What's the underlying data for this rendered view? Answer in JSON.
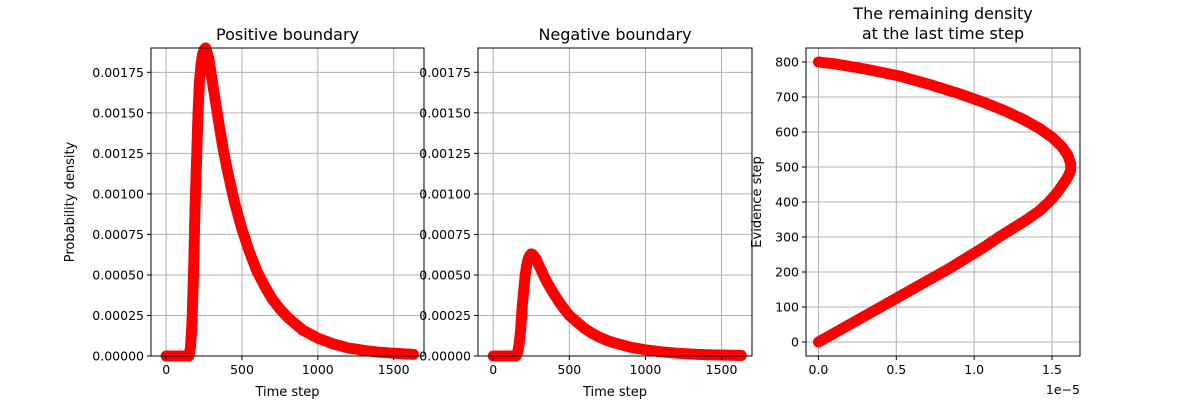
{
  "chart_data": [
    {
      "type": "scatter",
      "title": "Positive boundary",
      "xlabel": "Time step",
      "ylabel": "Probability density",
      "xlim": [
        -100,
        1700
      ],
      "ylim": [
        0,
        0.0019
      ],
      "xticks": [
        0,
        500,
        1000,
        1500
      ],
      "xtick_labels": [
        "0",
        "500",
        "1000",
        "1500"
      ],
      "yticks": [
        0,
        0.00025,
        0.0005,
        0.00075,
        0.001,
        0.00125,
        0.0015,
        0.00175
      ],
      "ytick_labels": [
        "0.00000",
        "0.00025",
        "0.00050",
        "0.00075",
        "0.00100",
        "0.00125",
        "0.00150",
        "0.00175"
      ],
      "grid": true,
      "marker_color": "#ff0000",
      "series": [
        {
          "x": [
            0,
            100,
            150,
            160,
            170,
            180,
            190,
            200,
            210,
            220,
            230,
            240,
            250,
            260,
            280,
            300,
            325,
            350,
            375,
            400,
            450,
            500,
            550,
            600,
            650,
            700,
            750,
            800,
            900,
            1000,
            1100,
            1200,
            1300,
            1400,
            1500,
            1600,
            1630
          ],
          "y": [
            0,
            0,
            0,
            5e-05,
            0.0002,
            0.0005,
            0.0009,
            0.0012,
            0.0015,
            0.0017,
            0.0018,
            0.00186,
            0.00189,
            0.0019,
            0.00184,
            0.00172,
            0.00157,
            0.00142,
            0.00128,
            0.00116,
            0.00095,
            0.00078,
            0.00064,
            0.00052,
            0.00043,
            0.00035,
            0.00029,
            0.00024,
            0.00016,
            0.00011,
            7.5e-05,
            5e-05,
            3.5e-05,
            2.4e-05,
            1.7e-05,
            1.2e-05,
            1e-05
          ]
        }
      ]
    },
    {
      "type": "scatter",
      "title": "Negative boundary",
      "xlabel": "Time step",
      "ylabel": "",
      "xlim": [
        -100,
        1700
      ],
      "ylim": [
        0,
        0.0019
      ],
      "xticks": [
        0,
        500,
        1000,
        1500
      ],
      "xtick_labels": [
        "0",
        "500",
        "1000",
        "1500"
      ],
      "yticks": [
        0,
        0.00025,
        0.0005,
        0.00075,
        0.001,
        0.00125,
        0.0015,
        0.00175
      ],
      "ytick_labels": [
        "0.00000",
        "0.00025",
        "0.00050",
        "0.00075",
        "0.00100",
        "0.00125",
        "0.00150",
        "0.00175"
      ],
      "grid": true,
      "marker_color": "#ff0000",
      "series": [
        {
          "x": [
            0,
            100,
            150,
            160,
            170,
            180,
            190,
            200,
            210,
            220,
            230,
            240,
            250,
            260,
            280,
            300,
            325,
            350,
            375,
            400,
            450,
            500,
            550,
            600,
            650,
            700,
            750,
            800,
            900,
            1000,
            1100,
            1200,
            1300,
            1400,
            1500,
            1600,
            1630
          ],
          "y": [
            0,
            0,
            0,
            2e-05,
            7e-05,
            0.00016,
            0.0003,
            0.0004,
            0.0005,
            0.00056,
            0.0006,
            0.00062,
            0.00063,
            0.000625,
            0.0006,
            0.00056,
            0.00051,
            0.00046,
            0.00042,
            0.00038,
            0.00031,
            0.00025,
            0.00021,
            0.00017,
            0.00014,
            0.000115,
            9.5e-05,
            8e-05,
            5.5e-05,
            3.8e-05,
            2.6e-05,
            1.8e-05,
            1.2e-05,
            8e-06,
            6e-06,
            4e-06,
            3e-06
          ]
        }
      ]
    },
    {
      "type": "scatter",
      "title": "The remaining density\nat the last time step",
      "title_lines": [
        "The remaining density",
        "at the last time step"
      ],
      "xlabel": "",
      "ylabel": "Evidence step",
      "x_offset_label": "1e−5",
      "xlim": [
        -0.08,
        1.68
      ],
      "ylim": [
        -40,
        840
      ],
      "xticks": [
        0,
        0.5,
        1.0,
        1.5
      ],
      "xtick_labels": [
        "0.0",
        "0.5",
        "1.0",
        "1.5"
      ],
      "yticks": [
        0,
        100,
        200,
        300,
        400,
        500,
        600,
        700,
        800
      ],
      "ytick_labels": [
        "0",
        "100",
        "200",
        "300",
        "400",
        "500",
        "600",
        "700",
        "800"
      ],
      "grid": true,
      "marker_color": "#ff0000",
      "series": [
        {
          "x": [
            0.0,
            0.12,
            0.24,
            0.36,
            0.48,
            0.6,
            0.72,
            0.84,
            0.95,
            1.06,
            1.16,
            1.25,
            1.34,
            1.42,
            1.48,
            1.53,
            1.57,
            1.6,
            1.62,
            1.62,
            1.6,
            1.56,
            1.5,
            1.42,
            1.32,
            1.2,
            1.06,
            0.9,
            0.72,
            0.52,
            0.3,
            0.1,
            0.0
          ],
          "y": [
            0,
            30,
            60,
            90,
            120,
            150,
            180,
            210,
            240,
            270,
            300,
            325,
            350,
            375,
            400,
            425,
            450,
            470,
            490,
            510,
            535,
            560,
            585,
            610,
            635,
            660,
            685,
            710,
            735,
            760,
            780,
            795,
            800
          ]
        }
      ]
    }
  ]
}
